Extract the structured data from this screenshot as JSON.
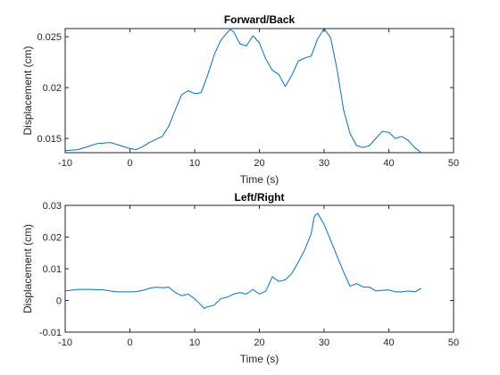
{
  "figure": {
    "background": "#ffffff"
  },
  "chart_data": [
    {
      "type": "line",
      "title": "Forward/Back",
      "xlabel": "Time (s)",
      "ylabel": "Displacement (cm)",
      "xlim": [
        -10,
        50
      ],
      "ylim": [
        0.0136,
        0.0258
      ],
      "xticks": [
        -10,
        0,
        10,
        20,
        30,
        40,
        50
      ],
      "yticks": [
        0.015,
        0.02,
        0.025
      ],
      "ytick_labels": [
        "0.015",
        "0.02",
        "0.025"
      ],
      "grid": false,
      "line_color": "#0072BD",
      "series": [
        {
          "x": [
            -10,
            -8,
            -6,
            -5,
            -3,
            -2,
            0,
            1,
            2,
            3,
            4,
            5,
            6,
            7,
            8,
            9,
            10,
            11,
            12,
            13,
            14,
            15,
            15.5,
            16,
            17,
            18,
            19,
            20,
            21,
            22,
            23,
            24,
            25,
            26,
            27,
            28,
            29,
            30,
            31,
            32,
            33,
            34,
            35,
            36,
            37,
            38,
            39,
            40,
            41,
            42,
            43,
            44,
            45
          ],
          "y": [
            0.0138,
            0.0139,
            0.0143,
            0.0145,
            0.0146,
            0.0144,
            0.014,
            0.0139,
            0.0142,
            0.0146,
            0.0149,
            0.0152,
            0.0162,
            0.0178,
            0.0193,
            0.0197,
            0.0194,
            0.0195,
            0.0212,
            0.0232,
            0.0246,
            0.0254,
            0.0257,
            0.0255,
            0.0243,
            0.0241,
            0.0251,
            0.0244,
            0.0228,
            0.0217,
            0.0213,
            0.0201,
            0.0212,
            0.0226,
            0.0229,
            0.0231,
            0.0248,
            0.0258,
            0.0249,
            0.0218,
            0.0178,
            0.0155,
            0.0143,
            0.0141,
            0.0143,
            0.015,
            0.0157,
            0.0156,
            0.015,
            0.0152,
            0.0148,
            0.0141,
            0.0136
          ]
        }
      ]
    },
    {
      "type": "line",
      "title": "Left/Right",
      "xlabel": "Time (s)",
      "ylabel": "Displacement (cm)",
      "xlim": [
        -10,
        50
      ],
      "ylim": [
        -0.01,
        0.03
      ],
      "xticks": [
        -10,
        0,
        10,
        20,
        30,
        40,
        50
      ],
      "yticks": [
        -0.01,
        0,
        0.01,
        0.02,
        0.03
      ],
      "ytick_labels": [
        "-0.01",
        "0",
        "0.01",
        "0.02",
        "0.03"
      ],
      "grid": false,
      "line_color": "#0072BD",
      "series": [
        {
          "x": [
            -10,
            -8,
            -6,
            -4,
            -2,
            0,
            1,
            2,
            3,
            4,
            5,
            6,
            7,
            8,
            9,
            10,
            11,
            11.5,
            12,
            13,
            14,
            15,
            16,
            17,
            18,
            19,
            20,
            21,
            22,
            23,
            24,
            25,
            26,
            27,
            28,
            28.5,
            29,
            30,
            31,
            32,
            33,
            34,
            35,
            36,
            37,
            38,
            39,
            40,
            41,
            42,
            43,
            44,
            45
          ],
          "y": [
            0.003,
            0.0035,
            0.0035,
            0.0033,
            0.0027,
            0.0027,
            0.0028,
            0.0032,
            0.0038,
            0.0042,
            0.004,
            0.0042,
            0.0025,
            0.0015,
            0.002,
            0.0005,
            -0.0015,
            -0.0025,
            -0.002,
            -0.0015,
            0.0005,
            0.001,
            0.002,
            0.0025,
            0.002,
            0.0035,
            0.002,
            0.003,
            0.0075,
            0.006,
            0.0065,
            0.0085,
            0.012,
            0.016,
            0.021,
            0.0265,
            0.0275,
            0.024,
            0.019,
            0.014,
            0.009,
            0.0045,
            0.0053,
            0.0043,
            0.0042,
            0.003,
            0.0032,
            0.0033,
            0.0027,
            0.0027,
            0.003,
            0.0027,
            0.0038
          ]
        }
      ]
    }
  ]
}
